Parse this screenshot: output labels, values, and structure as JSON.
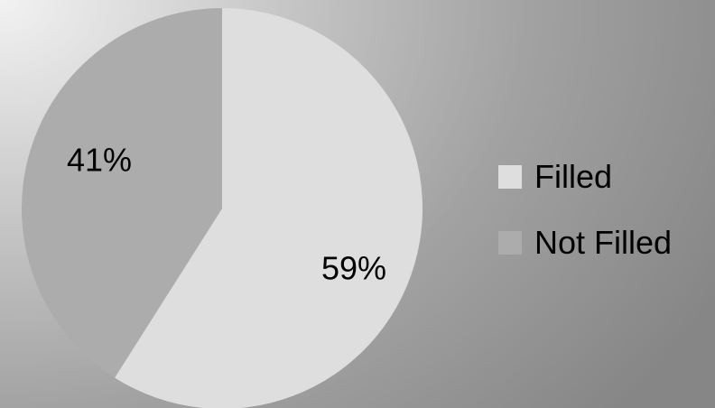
{
  "chart_data": {
    "type": "pie",
    "categories": [
      "Filled",
      "Not Filled"
    ],
    "values": [
      59,
      41
    ],
    "labels": [
      "59%",
      "41%"
    ],
    "colors": [
      "#dedede",
      "#acacac"
    ],
    "legend_position": "right",
    "title": "",
    "start_angle_deg": 0,
    "direction": "clockwise"
  }
}
